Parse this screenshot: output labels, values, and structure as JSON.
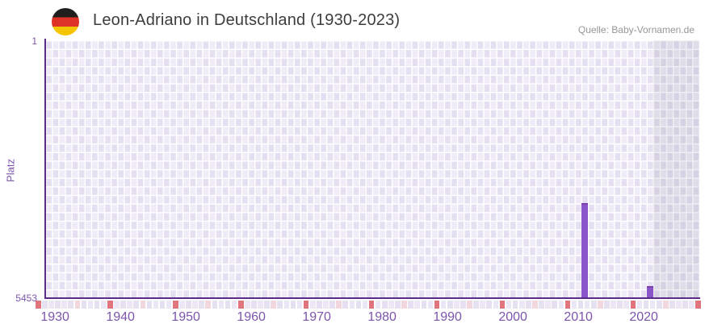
{
  "header": {
    "title": "Leon-Adriano in Deutschland (1930-2023)",
    "source": "Quelle: Baby-Vornamen.de",
    "flag_icon": "german-flag",
    "flag_colors": [
      "#1f1f1d",
      "#dd3327",
      "#f5c500"
    ]
  },
  "chart_data": {
    "type": "bar",
    "title": "Leon-Adriano in Deutschland (1930-2023)",
    "xlabel": "",
    "ylabel": "Platz",
    "y_axis": {
      "min": 1,
      "max": 5453,
      "inverted": true,
      "tick_labels": [
        "1",
        "5453"
      ]
    },
    "x_axis": {
      "min": 1929,
      "max": 2029,
      "tick_years": [
        1930,
        1940,
        1950,
        1960,
        1970,
        1980,
        1990,
        2000,
        2010,
        2020
      ]
    },
    "series": [
      {
        "name": "Platz",
        "color": "#8a55c8",
        "points": [
          {
            "year": 2011,
            "rank": 3450
          },
          {
            "year": 2021,
            "rank": 5200
          }
        ]
      }
    ],
    "highlight_band": {
      "start_year": 2022,
      "end_year": 2029
    },
    "grid": true,
    "legend": false
  },
  "colors": {
    "axis_line": "#5b2c87",
    "tick_text": "#7c55ab",
    "title_text": "#3d3d3d",
    "source_text": "#979797",
    "checker_light": "#efecf8",
    "checker_dark": "#e4dff1",
    "band_overlay": "rgba(124,124,145,0.13)"
  },
  "axis_strip": {
    "decade_color": "#e0757e",
    "mid_color": "#f3d7de",
    "base_colors": [
      "#ebe7f5",
      "#e6e1f0"
    ],
    "cell_count": 102
  }
}
